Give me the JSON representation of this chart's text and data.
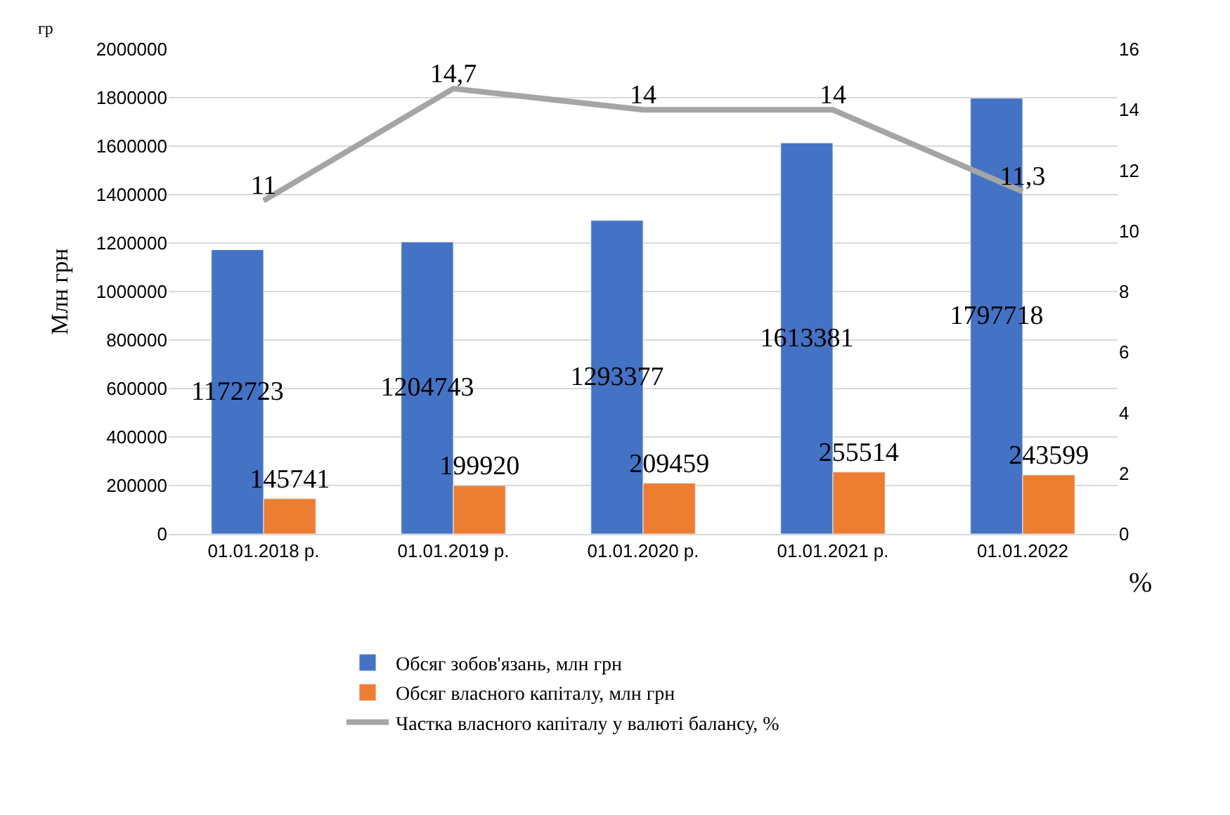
{
  "chart_data": {
    "type": "bar",
    "categories": [
      "01.01.2018 р.",
      "01.01.2019 р.",
      "01.01.2020 р.",
      "01.01.2021 р.",
      "01.01.2022"
    ],
    "series": [
      {
        "name": "Обсяг зобов'язань, млн грн",
        "color": "#4472c4",
        "values": [
          1172723,
          1204743,
          1293377,
          1613381,
          1797718
        ],
        "value_labels": [
          "1172723",
          "1204743",
          "1293377",
          "1613381",
          "1797718"
        ]
      },
      {
        "name": "Обсяг власного капіталу, млн грн",
        "color": "#ed7d31",
        "values": [
          145741,
          199920,
          209459,
          255514,
          243599
        ],
        "value_labels": [
          "145741",
          "199920",
          "209459",
          "255514",
          "243599"
        ]
      },
      {
        "name": "Частка власного капіталу у валюті балансу, %",
        "type": "line",
        "axis": "y2",
        "color": "#a5a5a5",
        "values": [
          11,
          14.7,
          14,
          14,
          11.3
        ],
        "value_labels": [
          "11",
          "14,7",
          "14",
          "14",
          "11,3"
        ],
        "marker": "none"
      }
    ],
    "ylabel": "Млн грн",
    "y2label": "%",
    "ylim": [
      0,
      2000000
    ],
    "yticks": [
      0,
      200000,
      400000,
      600000,
      800000,
      1000000,
      1200000,
      1400000,
      1600000,
      1800000,
      2000000
    ],
    "y2lim": [
      0,
      16
    ],
    "y2ticks": [
      0,
      2,
      4,
      6,
      8,
      10,
      12,
      14,
      16
    ],
    "grid": "y",
    "legend": "bottom",
    "annotations": [
      "гр"
    ]
  }
}
